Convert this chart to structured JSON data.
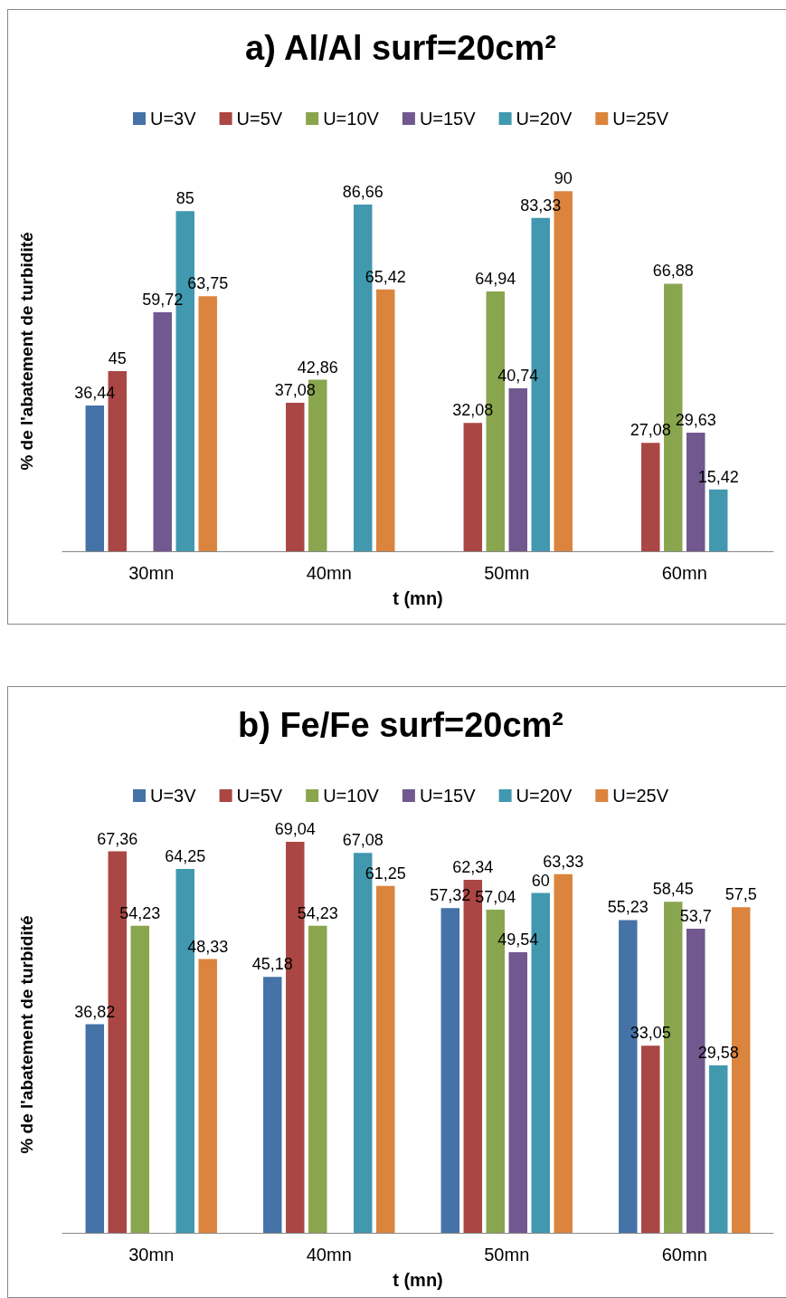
{
  "chart_data": [
    {
      "type": "bar",
      "title": "a) Al/Al surf=20cm²",
      "xlabel": "t (mn)",
      "ylabel": "% de l'abatement de turbidité",
      "categories": [
        "30mn",
        "40mn",
        "50mn",
        "60mn"
      ],
      "tick_labels": "x",
      "legend": "top",
      "series": [
        {
          "name": "U=3V",
          "color": "#4572a7",
          "values": [
            36.44,
            null,
            null,
            null
          ],
          "value_labels": [
            "36,44",
            null,
            null,
            null
          ]
        },
        {
          "name": "U=5V",
          "color": "#aa4643",
          "values": [
            45,
            37.08,
            32.08,
            27.08
          ],
          "value_labels": [
            "45",
            "37,08",
            "32,08",
            "27,08"
          ]
        },
        {
          "name": "U=10V",
          "color": "#89a54e",
          "values": [
            null,
            42.86,
            64.94,
            66.88
          ],
          "value_labels": [
            null,
            "42,86",
            "64,94",
            "66,88"
          ]
        },
        {
          "name": "U=15V",
          "color": "#71588f",
          "values": [
            59.72,
            null,
            40.74,
            29.63
          ],
          "value_labels": [
            "59,72",
            null,
            "40,74",
            "29,63"
          ]
        },
        {
          "name": "U=20V",
          "color": "#4198af",
          "values": [
            85,
            86.66,
            83.33,
            15.42
          ],
          "value_labels": [
            "85",
            "86,66",
            "83,33",
            "15,42"
          ]
        },
        {
          "name": "U=25V",
          "color": "#db843d",
          "values": [
            63.75,
            65.42,
            90,
            null
          ],
          "value_labels": [
            "63,75",
            "65,42",
            "90",
            null
          ]
        }
      ]
    },
    {
      "type": "bar",
      "title": "b) Fe/Fe surf=20cm²",
      "xlabel": "t (mn)",
      "ylabel": "% de l'abatement de turbidité",
      "categories": [
        "30mn",
        "40mn",
        "50mn",
        "60mn"
      ],
      "tick_labels": "x",
      "legend": "top",
      "series": [
        {
          "name": "U=3V",
          "color": "#4572a7",
          "values": [
            36.82,
            45.18,
            57.32,
            55.23
          ],
          "value_labels": [
            "36,82",
            "45,18",
            "57,32",
            "55,23"
          ]
        },
        {
          "name": "U=5V",
          "color": "#aa4643",
          "values": [
            67.36,
            69.04,
            62.34,
            33.05
          ],
          "value_labels": [
            "67,36",
            "69,04",
            "62,34",
            "33,05"
          ]
        },
        {
          "name": "U=10V",
          "color": "#89a54e",
          "values": [
            54.23,
            54.23,
            57.04,
            58.45
          ],
          "value_labels": [
            "54,23",
            "54,23",
            "57,04",
            "58,45"
          ]
        },
        {
          "name": "U=15V",
          "color": "#71588f",
          "values": [
            null,
            null,
            49.54,
            53.7
          ],
          "value_labels": [
            null,
            null,
            "49,54",
            "53,7"
          ]
        },
        {
          "name": "U=20V",
          "color": "#4198af",
          "values": [
            64.25,
            67.08,
            60,
            29.58
          ],
          "value_labels": [
            "64,25",
            "67,08",
            "60",
            "29,58"
          ]
        },
        {
          "name": "U=25V",
          "color": "#db843d",
          "values": [
            48.33,
            61.25,
            63.33,
            57.5
          ],
          "value_labels": [
            "48,33",
            "61,25",
            "63,33",
            "57,5"
          ]
        }
      ]
    }
  ]
}
